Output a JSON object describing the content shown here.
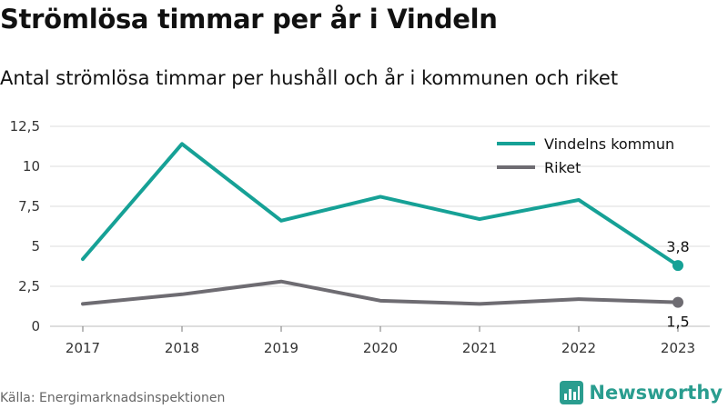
{
  "header": {
    "title": "Strömlösa timmar per år i Vindeln",
    "subtitle": "Antal strömlösa timmar per hushåll och år i kommunen och riket"
  },
  "footer": {
    "source": "Källa: Energimarknadsinspektionen",
    "brand": "Newsworthy",
    "brand_icon": "bar-chart-icon"
  },
  "colors": {
    "vindeln": "#16a196",
    "riket": "#6e6c72",
    "grid": "#dddddd",
    "brand": "#2a9d8f"
  },
  "chart_data": {
    "type": "line",
    "title": "Strömlösa timmar per år i Vindeln",
    "subtitle": "Antal strömlösa timmar per hushåll och år i kommunen och riket",
    "x": [
      "2017",
      "2018",
      "2019",
      "2020",
      "2021",
      "2022",
      "2023"
    ],
    "y_ticks": [
      "0",
      "2,5",
      "5",
      "7,5",
      "10",
      "12,5"
    ],
    "y_tick_values": [
      0,
      2.5,
      5,
      7.5,
      10,
      12.5
    ],
    "ylim": [
      0,
      12.5
    ],
    "grid": true,
    "legend_position": "top-right",
    "series": [
      {
        "name": "Vindelns kommun",
        "values": [
          4.2,
          11.4,
          6.6,
          8.1,
          6.7,
          7.9,
          3.8
        ],
        "end_label": "3,8"
      },
      {
        "name": "Riket",
        "values": [
          1.4,
          2.0,
          2.8,
          1.6,
          1.4,
          1.7,
          1.5
        ],
        "end_label": "1,5"
      }
    ]
  }
}
